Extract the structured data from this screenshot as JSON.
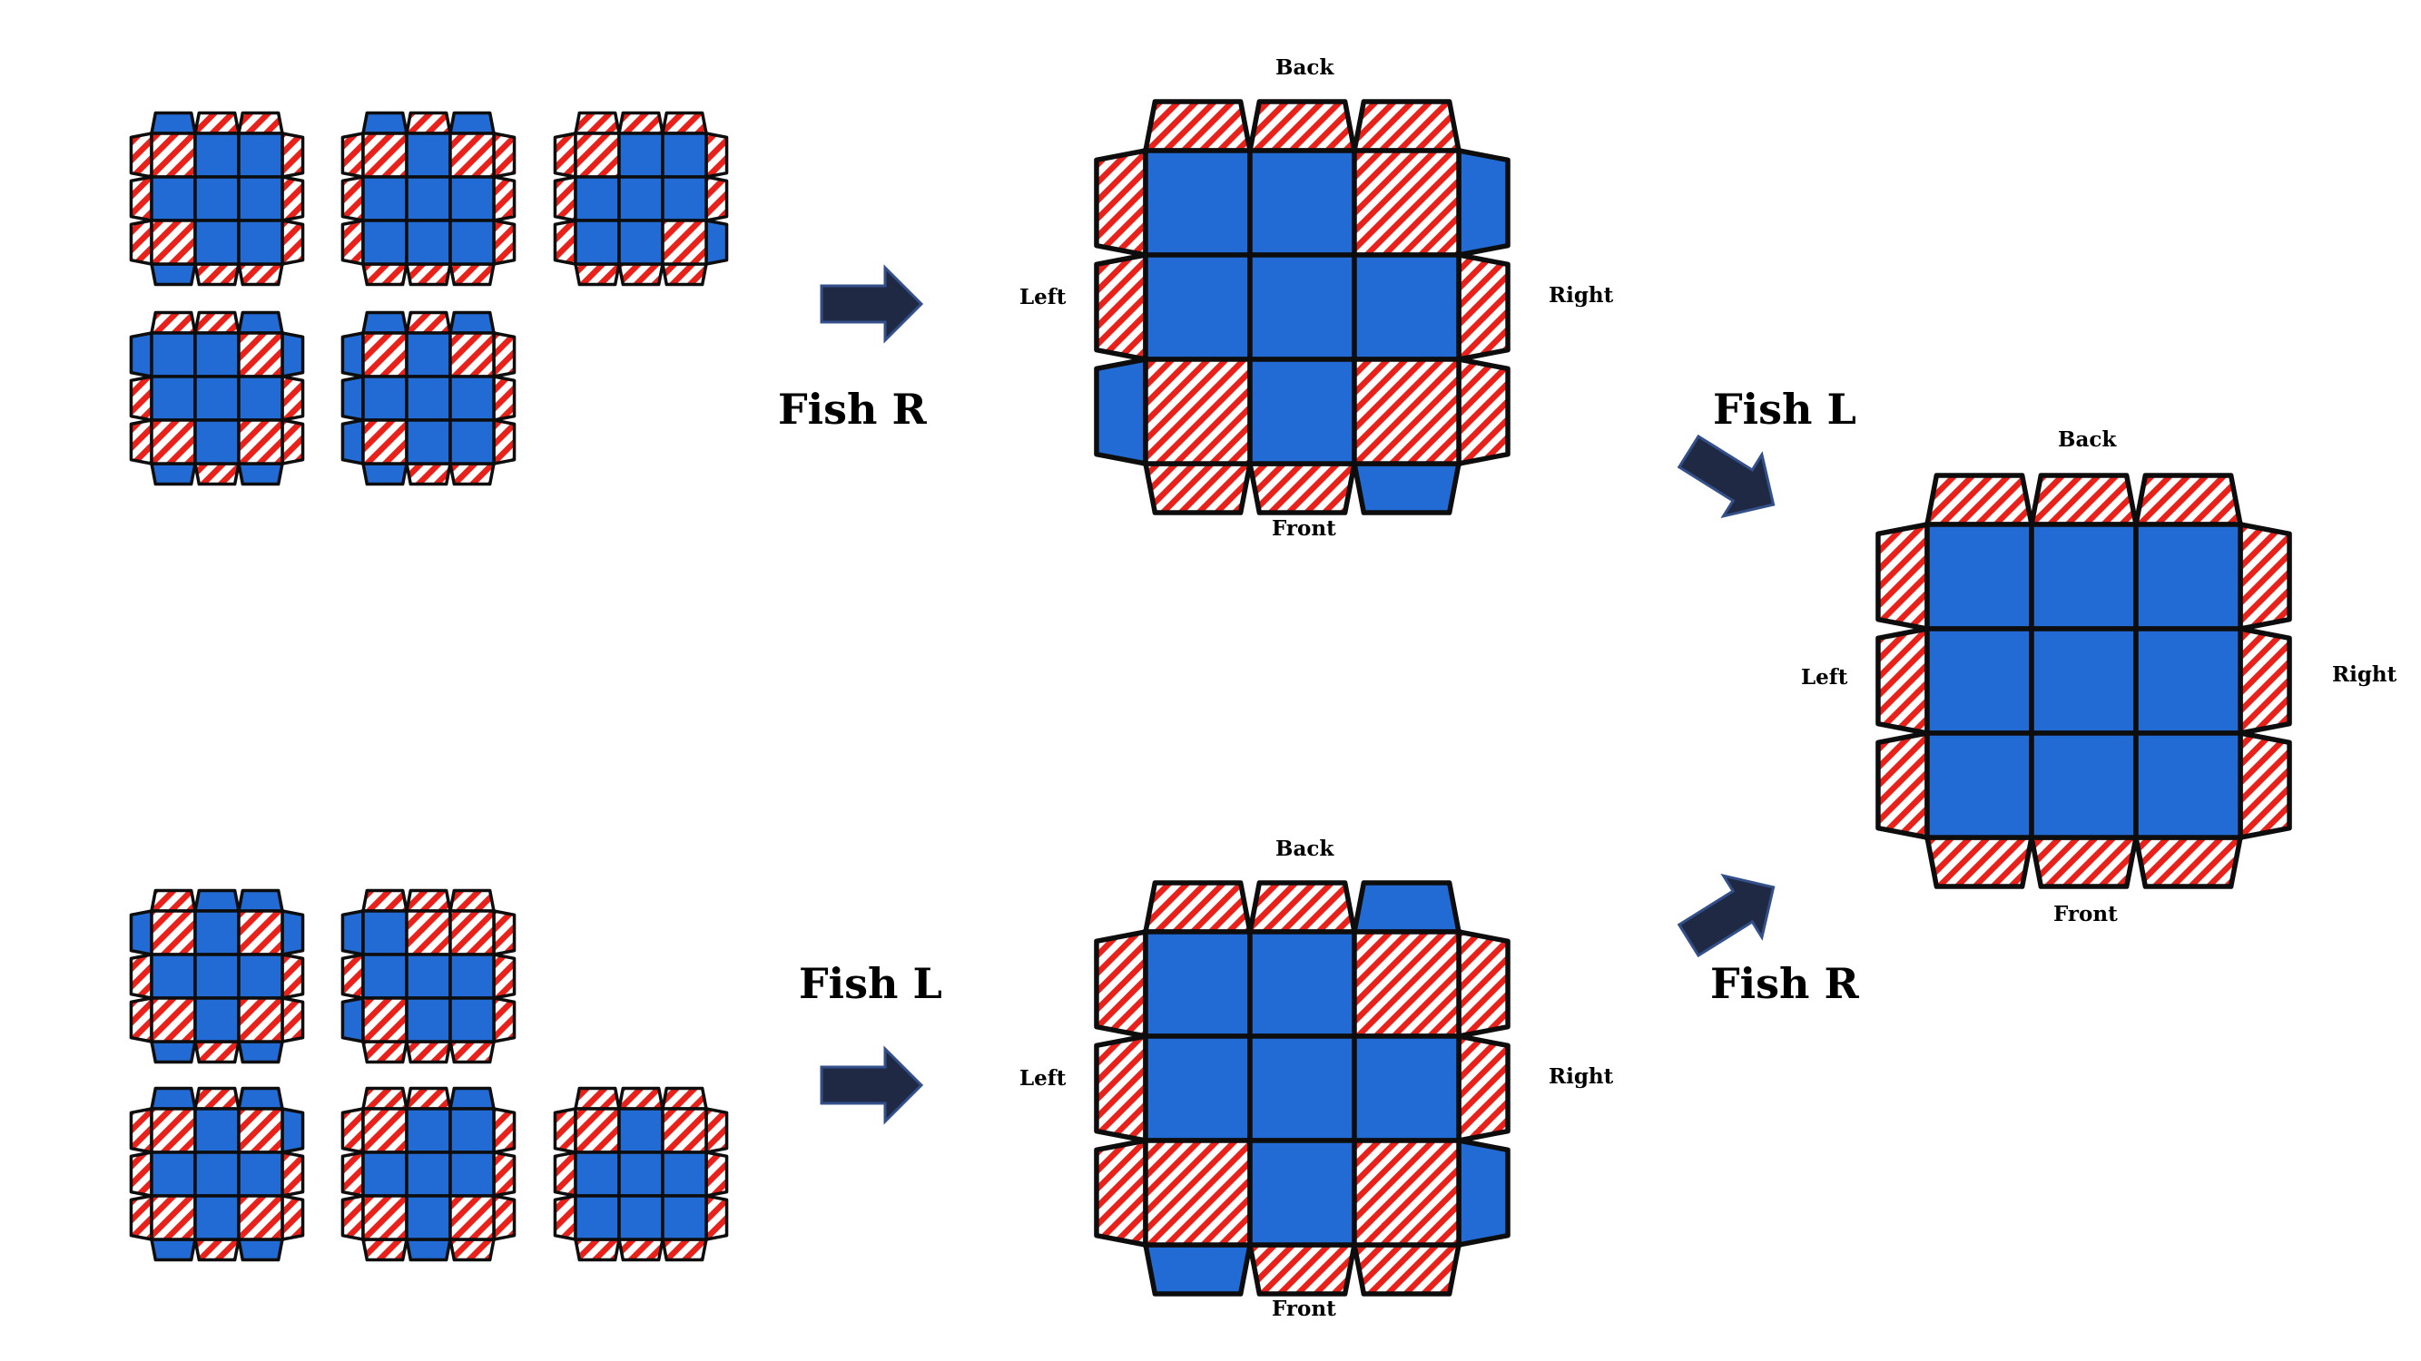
{
  "colors": {
    "blue": "#226bd4",
    "red": "#e8221a",
    "stripe_bg": "#ffffff",
    "outline": "#0d0d0d",
    "arrow": "#1f2944"
  },
  "sides": {
    "back": "Back",
    "front": "Front",
    "left": "Left",
    "right": "Right"
  },
  "algorithms": {
    "top": "Fish R",
    "bottom": "Fish L",
    "final_from_top": "Fish L",
    "final_from_bottom": "Fish R"
  },
  "diagrams": {
    "top_small": [
      {
        "face": [
          "R",
          "B",
          "B",
          "B",
          "B",
          "B",
          "R",
          "B",
          "B"
        ],
        "back": [
          "B",
          "R",
          "R"
        ],
        "right": [
          "R",
          "R",
          "R"
        ],
        "front": [
          "B",
          "R",
          "R"
        ],
        "left": [
          "R",
          "R",
          "R"
        ]
      },
      {
        "face": [
          "R",
          "B",
          "R",
          "B",
          "B",
          "B",
          "B",
          "B",
          "B"
        ],
        "back": [
          "B",
          "R",
          "B"
        ],
        "right": [
          "R",
          "R",
          "R"
        ],
        "front": [
          "R",
          "R",
          "R"
        ],
        "left": [
          "R",
          "R",
          "R"
        ]
      },
      {
        "face": [
          "R",
          "B",
          "B",
          "B",
          "B",
          "B",
          "B",
          "B",
          "R"
        ],
        "back": [
          "R",
          "R",
          "R"
        ],
        "right": [
          "R",
          "R",
          "B"
        ],
        "front": [
          "R",
          "R",
          "R"
        ],
        "left": [
          "R",
          "R",
          "R"
        ]
      },
      {
        "face": [
          "B",
          "B",
          "R",
          "B",
          "B",
          "B",
          "R",
          "B",
          "R"
        ],
        "back": [
          "R",
          "R",
          "B"
        ],
        "right": [
          "B",
          "R",
          "R"
        ],
        "front": [
          "B",
          "R",
          "B"
        ],
        "left": [
          "B",
          "R",
          "R"
        ]
      },
      {
        "face": [
          "R",
          "B",
          "R",
          "B",
          "B",
          "B",
          "R",
          "B",
          "B"
        ],
        "back": [
          "B",
          "R",
          "B"
        ],
        "right": [
          "R",
          "R",
          "R"
        ],
        "front": [
          "B",
          "R",
          "R"
        ],
        "left": [
          "B",
          "B",
          "B"
        ]
      }
    ],
    "bottom_small": [
      {
        "face": [
          "R",
          "B",
          "R",
          "B",
          "B",
          "B",
          "R",
          "B",
          "R"
        ],
        "back": [
          "R",
          "B",
          "B"
        ],
        "right": [
          "B",
          "R",
          "R"
        ],
        "front": [
          "B",
          "R",
          "B"
        ],
        "left": [
          "B",
          "R",
          "R"
        ]
      },
      {
        "face": [
          "B",
          "R",
          "R",
          "B",
          "B",
          "B",
          "R",
          "B",
          "B"
        ],
        "back": [
          "R",
          "R",
          "R"
        ],
        "right": [
          "R",
          "R",
          "R"
        ],
        "front": [
          "R",
          "R",
          "R"
        ],
        "left": [
          "B",
          "R",
          "B"
        ]
      },
      {
        "face": [
          "R",
          "B",
          "R",
          "B",
          "B",
          "B",
          "R",
          "B",
          "R"
        ],
        "back": [
          "B",
          "R",
          "B"
        ],
        "right": [
          "B",
          "R",
          "R"
        ],
        "front": [
          "B",
          "R",
          "B"
        ],
        "left": [
          "R",
          "R",
          "R"
        ]
      },
      {
        "face": [
          "R",
          "B",
          "B",
          "B",
          "B",
          "B",
          "R",
          "B",
          "R"
        ],
        "back": [
          "R",
          "R",
          "B"
        ],
        "right": [
          "R",
          "R",
          "R"
        ],
        "front": [
          "R",
          "B",
          "R"
        ],
        "left": [
          "R",
          "R",
          "R"
        ]
      },
      {
        "face": [
          "R",
          "B",
          "R",
          "B",
          "B",
          "B",
          "B",
          "B",
          "B"
        ],
        "back": [
          "R",
          "R",
          "R"
        ],
        "right": [
          "R",
          "R",
          "R"
        ],
        "front": [
          "R",
          "R",
          "R"
        ],
        "left": [
          "R",
          "R",
          "R"
        ]
      }
    ],
    "top_large": {
      "face": [
        "B",
        "B",
        "R",
        "B",
        "B",
        "B",
        "R",
        "B",
        "R"
      ],
      "back": [
        "R",
        "R",
        "R"
      ],
      "right": [
        "B",
        "R",
        "R"
      ],
      "front": [
        "R",
        "R",
        "B"
      ],
      "left": [
        "R",
        "R",
        "B"
      ]
    },
    "bottom_large": {
      "face": [
        "B",
        "B",
        "R",
        "B",
        "B",
        "B",
        "R",
        "B",
        "R"
      ],
      "back": [
        "R",
        "R",
        "B"
      ],
      "right": [
        "R",
        "R",
        "B"
      ],
      "front": [
        "B",
        "R",
        "R"
      ],
      "left": [
        "R",
        "R",
        "R"
      ]
    },
    "final": {
      "face": [
        "B",
        "B",
        "B",
        "B",
        "B",
        "B",
        "B",
        "B",
        "B"
      ],
      "back": [
        "R",
        "R",
        "R"
      ],
      "right": [
        "R",
        "R",
        "R"
      ],
      "front": [
        "R",
        "R",
        "R"
      ],
      "left": [
        "R",
        "R",
        "R"
      ]
    }
  }
}
